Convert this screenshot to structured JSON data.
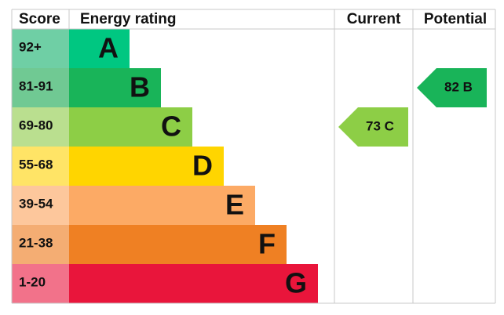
{
  "header": {
    "score": "Score",
    "rating": "Energy rating",
    "current": "Current",
    "potential": "Potential"
  },
  "bands": [
    {
      "score": "92+",
      "letter": "A",
      "color": "#00c781",
      "score_color": "#6fcfa5"
    },
    {
      "score": "81-91",
      "letter": "B",
      "color": "#19b459",
      "score_color": "#70c993"
    },
    {
      "score": "69-80",
      "letter": "C",
      "color": "#8dce46",
      "score_color": "#badf8f"
    },
    {
      "score": "55-68",
      "letter": "D",
      "color": "#ffd500",
      "score_color": "#ffe466"
    },
    {
      "score": "39-54",
      "letter": "E",
      "color": "#fcaa65",
      "score_color": "#fdc79c"
    },
    {
      "score": "21-38",
      "letter": "F",
      "color": "#ef8023",
      "score_color": "#f4ad73"
    },
    {
      "score": "1-20",
      "letter": "G",
      "color": "#e9153b",
      "score_color": "#f2728a"
    }
  ],
  "current": {
    "label": "73 C",
    "color": "#8dce46"
  },
  "potential": {
    "label": "82 B",
    "color": "#19b459"
  }
}
